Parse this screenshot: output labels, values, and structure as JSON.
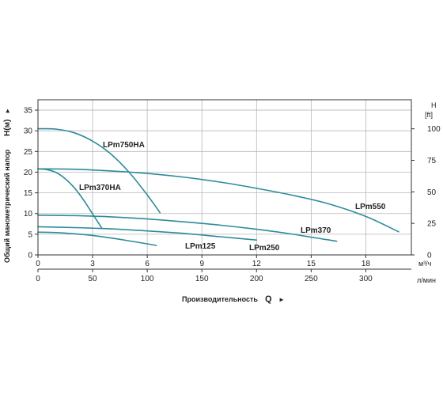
{
  "chart_data": {
    "type": "line",
    "grid": true,
    "legend": "labels-on-curves",
    "colors": {
      "curve": "#2e8b9a",
      "grid": "#b8b8b8",
      "axis": "#333333"
    },
    "y_axis_left": {
      "label": "Общий манометрический напор",
      "symbol": "H(м)",
      "arrow": "►",
      "range": [
        0,
        37.5
      ],
      "ticks": [
        0,
        5,
        10,
        15,
        20,
        25,
        30,
        35
      ],
      "tick_labels": [
        "0",
        "5",
        "10",
        "15",
        "20",
        "25",
        "30",
        "35"
      ]
    },
    "y_axis_right": {
      "symbol": "H",
      "unit": "[ft]",
      "range": [
        0,
        123.03
      ],
      "ticks": [
        0,
        25,
        50,
        75,
        100
      ],
      "tick_labels": [
        "0",
        "25",
        "50",
        "75",
        "100"
      ]
    },
    "x_axis_top": {
      "unit": "м³/ч",
      "range": [
        0,
        20.5
      ],
      "ticks": [
        0,
        3,
        6,
        9,
        12,
        15,
        18
      ],
      "tick_labels": [
        "0",
        "3",
        "6",
        "9",
        "12",
        "15",
        "18"
      ]
    },
    "x_axis_bottom": {
      "unit": "л/мин",
      "range": [
        0,
        341.7
      ],
      "ticks": [
        0,
        50,
        100,
        150,
        200,
        250,
        300
      ],
      "tick_labels": [
        "0",
        "50",
        "100",
        "150",
        "200",
        "250",
        "300"
      ]
    },
    "x_axis_title": {
      "label": "Производительность",
      "symbol": "Q",
      "arrow": "►"
    },
    "series": [
      {
        "name": "LPm750HA",
        "x": [
          0,
          1,
          2,
          3,
          4,
          5,
          6,
          6.7
        ],
        "y": [
          30.5,
          30.4,
          29.5,
          27.5,
          24.4,
          20.0,
          14.5,
          10.2
        ]
      },
      {
        "name": "LPm550",
        "x": [
          0,
          2,
          4,
          6,
          8,
          10,
          12,
          14,
          16,
          18,
          19.8
        ],
        "y": [
          20.8,
          20.7,
          20.3,
          19.7,
          18.8,
          17.6,
          16.1,
          14.4,
          12.3,
          9.3,
          5.6
        ]
      },
      {
        "name": "LPm370HA",
        "x": [
          0,
          0.5,
          1,
          1.5,
          2,
          2.5,
          3,
          3.5
        ],
        "y": [
          20.8,
          20.6,
          19.9,
          18.4,
          16.2,
          13.3,
          9.9,
          6.5
        ]
      },
      {
        "name": "LPm370",
        "x": [
          0,
          2,
          4,
          6,
          8,
          10,
          12,
          14,
          16.4
        ],
        "y": [
          9.6,
          9.5,
          9.2,
          8.7,
          8.0,
          7.2,
          6.2,
          5.0,
          3.3
        ]
      },
      {
        "name": "LPm250",
        "x": [
          0,
          2,
          4,
          6,
          8,
          10,
          12
        ],
        "y": [
          6.8,
          6.6,
          6.3,
          5.8,
          5.2,
          4.4,
          3.6
        ]
      },
      {
        "name": "LPm125",
        "x": [
          0,
          1,
          2,
          3,
          4,
          5,
          6.5
        ],
        "y": [
          5.5,
          5.4,
          5.1,
          4.7,
          4.1,
          3.4,
          2.3
        ]
      }
    ]
  }
}
